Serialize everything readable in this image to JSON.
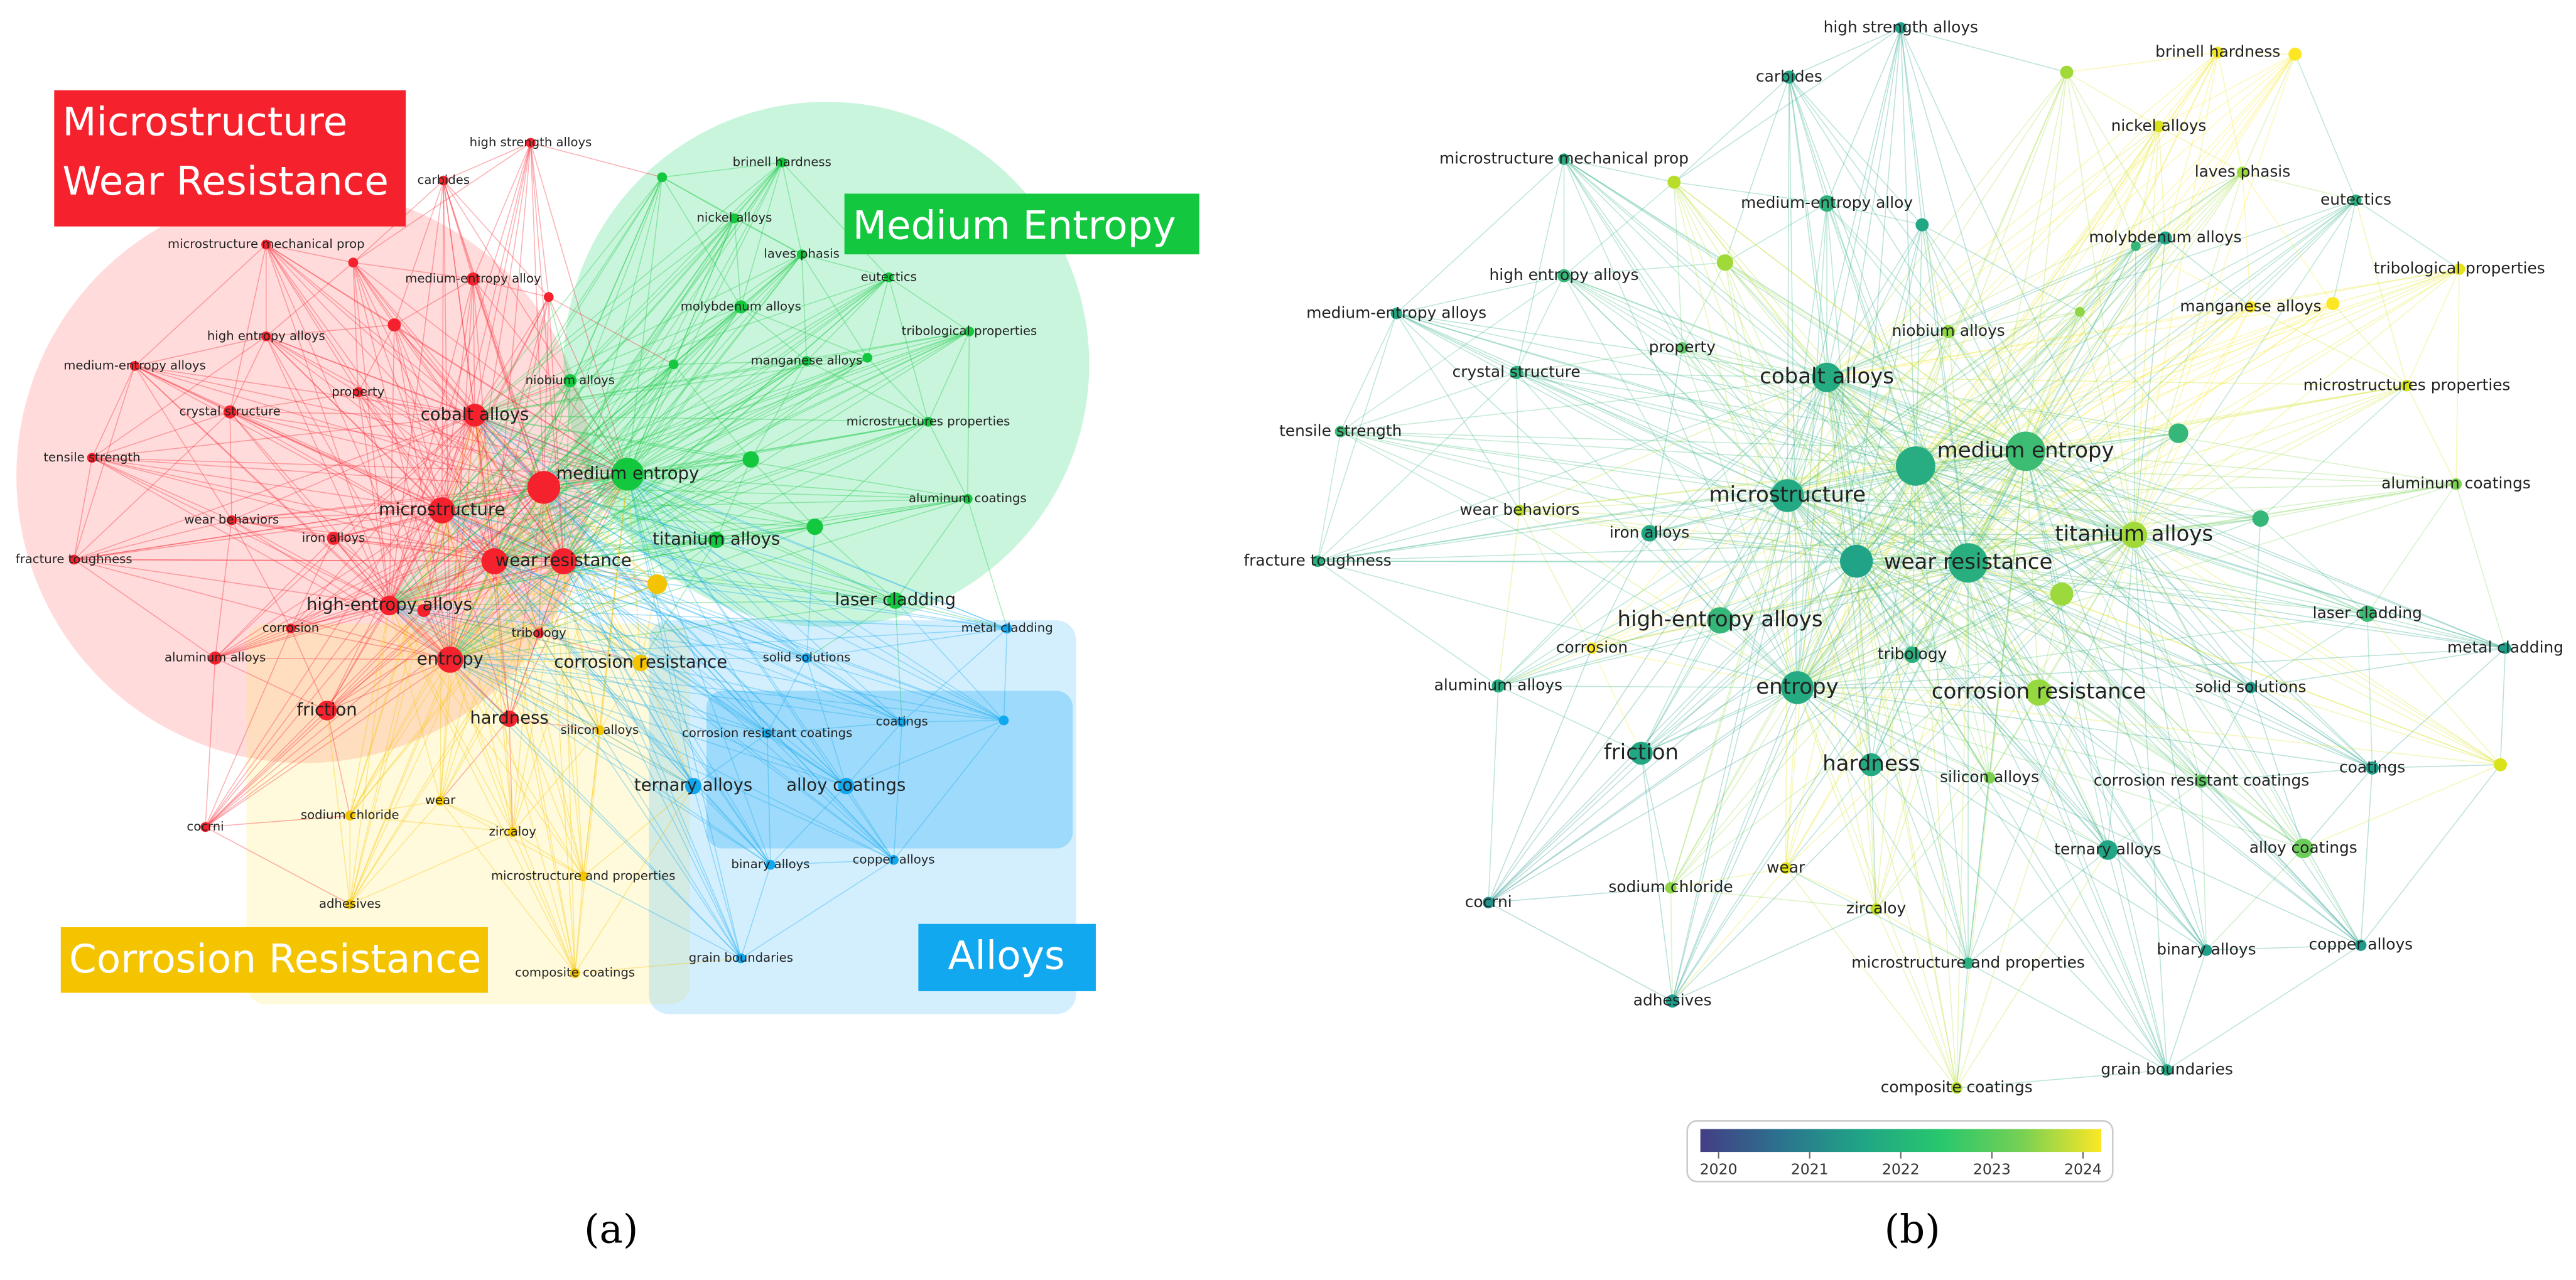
{
  "panel_a": {
    "label": "(a)",
    "clusters": [
      {
        "lines": [
          "Microstructure",
          "Wear Resistance"
        ],
        "color": "#f5222d",
        "nodes": [
          "high strength alloys",
          "carbides",
          "microstructure mechanical prop",
          "medium-entropy alloy",
          "high entropy alloys",
          "medium-entropy alloys",
          "crystal structure",
          "property",
          "cobalt alloys",
          "tensile strength",
          "microstructure",
          "wear behaviors",
          "iron alloys",
          "fracture toughness",
          "wear resistance",
          "high-entropy alloys",
          "corrosion",
          "tribology",
          "aluminum alloys",
          "entropy",
          "friction",
          "hardness",
          "cocrni"
        ]
      },
      {
        "lines": [
          "Medium Entropy"
        ],
        "color": "#13c83f",
        "nodes": [
          "brinell hardness",
          "nickel alloys",
          "laves phasis",
          "eutectics",
          "molybdenum alloys",
          "tribological properties",
          "niobium alloys",
          "manganese alloys",
          "microstructures properties",
          "medium entropy",
          "aluminum coatings",
          "titanium alloys",
          "laser cladding"
        ]
      },
      {
        "lines": [
          "Corrosion Resistance"
        ],
        "color": "#f5c400",
        "nodes": [
          "corrosion resistance",
          "silicon alloys",
          "sodium chloride",
          "wear",
          "zircaloy",
          "adhesives",
          "microstructure and properties",
          "composite coatings"
        ]
      },
      {
        "lines": [
          "Alloys"
        ],
        "color": "#12a8ef",
        "nodes": [
          "metal cladding",
          "solid solutions",
          "coatings",
          "corrosion resistant coatings",
          "ternary alloys",
          "alloy coatings",
          "binary alloys",
          "copper alloys",
          "grain boundaries"
        ]
      }
    ]
  },
  "panel_b": {
    "label": "(b)",
    "nodes": [
      {
        "label": "high strength alloys",
        "color": "#1fa08a"
      },
      {
        "label": "carbides",
        "color": "#22a586"
      },
      {
        "label": "brinell hardness",
        "color": "#f2e51d"
      },
      {
        "label": "nickel alloys",
        "color": "#d9e21a"
      },
      {
        "label": "microstructure mechanical prop",
        "color": "#27ad81"
      },
      {
        "label": "laves phasis",
        "color": "#9bd93c"
      },
      {
        "label": "eutectics",
        "color": "#2ab07f"
      },
      {
        "label": "medium-entropy alloy",
        "color": "#2db27d"
      },
      {
        "label": "molybdenum alloys",
        "color": "#20a386"
      },
      {
        "label": "tribological properties",
        "color": "#e5e419"
      },
      {
        "label": "high entropy alloys",
        "color": "#35b779"
      },
      {
        "label": "manganese alloys",
        "color": "#fde725"
      },
      {
        "label": "medium-entropy alloys",
        "color": "#24a884"
      },
      {
        "label": "niobium alloys",
        "color": "#8ed645"
      },
      {
        "label": "property",
        "color": "#5ec962"
      },
      {
        "label": "crystal structure",
        "color": "#2db27d"
      },
      {
        "label": "cobalt alloys",
        "color": "#25ab82"
      },
      {
        "label": "microstructures properties",
        "color": "#d2e21b"
      },
      {
        "label": "tensile strength",
        "color": "#3bbb75"
      },
      {
        "label": "medium entropy",
        "color": "#3dbc74"
      },
      {
        "label": "aluminum coatings",
        "color": "#7fd34e"
      },
      {
        "label": "microstructure",
        "color": "#23a983"
      },
      {
        "label": "wear behaviors",
        "color": "#b8de29"
      },
      {
        "label": "iron alloys",
        "color": "#22a785"
      },
      {
        "label": "titanium alloys",
        "color": "#a0da39"
      },
      {
        "label": "fracture toughness",
        "color": "#2ab07f"
      },
      {
        "label": "wear resistance",
        "color": "#29af7f"
      },
      {
        "label": "high-entropy alloys",
        "color": "#35b779"
      },
      {
        "label": "laser cladding",
        "color": "#3dbc74"
      },
      {
        "label": "corrosion",
        "color": "#fde725"
      },
      {
        "label": "metal cladding",
        "color": "#1f9e89"
      },
      {
        "label": "tribology",
        "color": "#2ab07f"
      },
      {
        "label": "aluminum alloys",
        "color": "#25ab82"
      },
      {
        "label": "entropy",
        "color": "#25ab82"
      },
      {
        "label": "solid solutions",
        "color": "#1f9a8a"
      },
      {
        "label": "corrosion resistance",
        "color": "#95d840"
      },
      {
        "label": "friction",
        "color": "#22a785"
      },
      {
        "label": "hardness",
        "color": "#25ab82"
      },
      {
        "label": "coatings",
        "color": "#1f9e89"
      },
      {
        "label": "silicon alloys",
        "color": "#7ad151"
      },
      {
        "label": "corrosion resistant coatings",
        "color": "#5ec962"
      },
      {
        "label": "ternary alloys",
        "color": "#21a585"
      },
      {
        "label": "alloy coatings",
        "color": "#6ccd5a"
      },
      {
        "label": "wear",
        "color": "#e3e418"
      },
      {
        "label": "cocrni",
        "color": "#21918c"
      },
      {
        "label": "sodium chloride",
        "color": "#8ed645"
      },
      {
        "label": "zircaloy",
        "color": "#c2df23"
      },
      {
        "label": "binary alloys",
        "color": "#1f9e89"
      },
      {
        "label": "copper alloys",
        "color": "#1e9b8a"
      },
      {
        "label": "microstructure and properties",
        "color": "#2ab07f"
      },
      {
        "label": "adhesives",
        "color": "#1e9b8a"
      },
      {
        "label": "grain boundaries",
        "color": "#22a785"
      },
      {
        "label": "composite coatings",
        "color": "#b5de2b"
      }
    ],
    "colorbar": {
      "range": [
        2019.8,
        2024.2
      ],
      "ticks": [
        2020,
        2021,
        2022,
        2023,
        2024
      ],
      "colors": [
        "#433e85",
        "#2c728e",
        "#20a486",
        "#28c76d",
        "#75d054",
        "#fde725"
      ]
    }
  }
}
